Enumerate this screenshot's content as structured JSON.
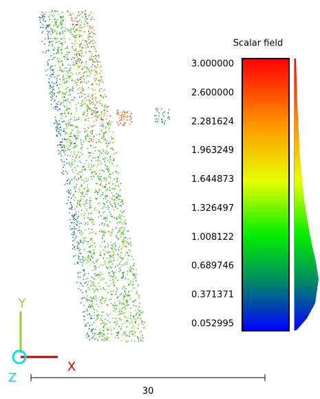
{
  "scalar_field": {
    "title": "Scalar field",
    "ticks": [
      "3.000000",
      "2.600000",
      "2.281624",
      "1.963249",
      "1.644873",
      "1.326497",
      "1.008122",
      "0.689746",
      "0.371371",
      "0.052995"
    ]
  },
  "axes": {
    "x": "X",
    "y": "Y",
    "z": "Z"
  },
  "scale_bar": {
    "label": 30
  }
}
